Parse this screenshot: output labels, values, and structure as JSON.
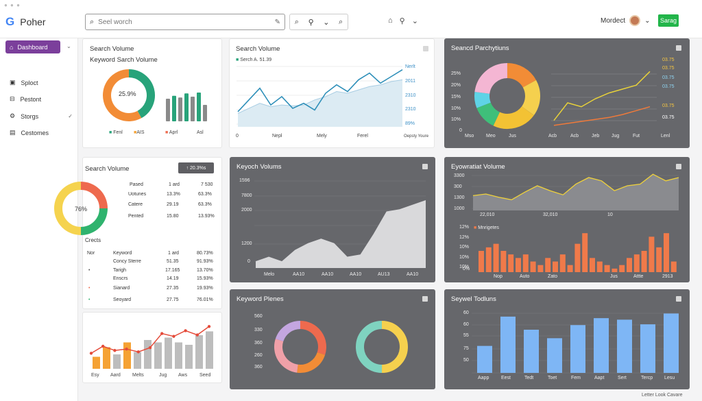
{
  "app": {
    "title": "Poher",
    "logo_letter": "G"
  },
  "search": {
    "placeholder": "Seel worch"
  },
  "user": {
    "name": "Mordect",
    "cta": "Sarag"
  },
  "sidebar": {
    "active": "Dashboard",
    "items": [
      {
        "label": "Sploct",
        "icon": "clipboard-icon"
      },
      {
        "label": "Pestont",
        "icon": "lock-icon"
      },
      {
        "label": "Storgs",
        "icon": "gear-icon"
      },
      {
        "label": "Cestomes",
        "icon": "document-icon"
      }
    ]
  },
  "card1": {
    "title": "Search Volume",
    "subtitle": "Keyword Sarch Volume",
    "donut_label": "25.9%",
    "legend": [
      "Fenl",
      "AIS",
      "Aprl",
      "Asl"
    ],
    "donut": [
      {
        "value": 0.42,
        "color": "#28a37a"
      },
      {
        "value": 0.58,
        "color": "#f28c36"
      }
    ],
    "bars": [
      {
        "v": 0.55,
        "color": "#8a8a8a"
      },
      {
        "v": 0.62,
        "color": "#28a37a"
      },
      {
        "v": 0.58,
        "color": "#8a8a8a"
      },
      {
        "v": 0.68,
        "color": "#28a37a"
      },
      {
        "v": 0.6,
        "color": "#8a8a8a"
      },
      {
        "v": 0.7,
        "color": "#28a37a"
      },
      {
        "v": 0.4,
        "color": "#8a8a8a"
      }
    ]
  },
  "card2": {
    "title": "Search Volume",
    "legend": "Serch A. 51.39",
    "x_labels": [
      "0",
      "Nepl",
      "Mely",
      "Ferel"
    ],
    "y_labels": [
      "Nerlt",
      "2011",
      "2310",
      "2310",
      "89%"
    ],
    "corner": "Oepsty Youre",
    "chart_data": {
      "type": "line",
      "x": [
        0,
        1,
        2,
        3,
        4,
        5,
        6,
        7,
        8,
        9,
        10,
        11,
        12,
        13,
        14,
        15
      ],
      "series": [
        {
          "values": [
            1.8,
            3.2,
            4.6,
            2.6,
            3.6,
            2.2,
            2.8,
            2.0,
            4.0,
            5.0,
            4.2,
            5.6,
            6.4,
            5.2,
            6.0,
            6.8
          ]
        },
        {
          "values": [
            1.6,
            2.2,
            2.8,
            2.4,
            2.6,
            2.5,
            2.6,
            3.2,
            3.6,
            4.2,
            4.0,
            4.4,
            4.8,
            5.0,
            5.4,
            5.6
          ]
        }
      ],
      "ylim": [
        0,
        8
      ]
    }
  },
  "card3": {
    "title": "Seancd Parchytiuns",
    "pie": [
      {
        "value": 0.17,
        "color": "#f28c36"
      },
      {
        "value": 0.18,
        "color": "#f5d04e"
      },
      {
        "value": 0.22,
        "color": "#f3c234"
      },
      {
        "value": 0.12,
        "color": "#3fbf7a"
      },
      {
        "value": 0.08,
        "color": "#5fd3e6"
      },
      {
        "value": 0.23,
        "color": "#f4b6d3"
      }
    ],
    "y_labels": [
      "25%",
      "20%",
      "15%",
      "10%",
      "10%",
      "0"
    ],
    "x_labels": [
      "Mso",
      "Meo",
      "Jus",
      "Acb",
      "Acb",
      "Jeb",
      "Jug",
      "Fut"
    ],
    "right": [
      "03.75",
      "03.75",
      "03.75",
      "03.75",
      "03.75",
      "03.75"
    ],
    "last": "Lenl",
    "chart_data": {
      "type": "line",
      "series": [
        {
          "values": [
            1,
            2.8,
            2.4,
            3.2,
            3.8,
            4.2,
            4.6,
            6.0
          ],
          "color": "#e8d23a"
        },
        {
          "values": [
            0.5,
            0.7,
            0.9,
            1.1,
            1.3,
            1.6,
            2.0,
            2.4
          ],
          "color": "#f07a3a"
        }
      ],
      "ylim": [
        0,
        7
      ]
    }
  },
  "card4": {
    "title": "Search Volume",
    "button": "↑ 20.3%s",
    "headers": [
      "Pased",
      "1 ard",
      "7 530"
    ],
    "rows": [
      [
        "Uotunes",
        "13.3%",
        "63.3%"
      ],
      [
        "Catere",
        "29.19",
        "63.3%"
      ],
      [
        "Pented",
        "15.80",
        "13.93%"
      ]
    ],
    "donut_label": "76%",
    "donut": [
      {
        "value": 0.25,
        "color": "#ee6a4e"
      },
      {
        "value": 0.25,
        "color": "#2fb36e"
      },
      {
        "value": 0.5,
        "color": "#f5d34e"
      }
    ],
    "section": "Crects",
    "col": "Nor",
    "rows2": [
      [
        "Keyword",
        "1 ard",
        "80.73%"
      ],
      [
        "Concy Sterre",
        "51.35",
        "91.93%"
      ],
      [
        "Tarigh",
        "17.165",
        "13.70%"
      ],
      [
        "Enscrs",
        "14.19",
        "15.93%"
      ],
      [
        "Sianard",
        "27.35",
        "19.93%"
      ],
      [
        "Seoyard",
        "27.75",
        "76.01%"
      ]
    ],
    "bullets": [
      "",
      "",
      "",
      "",
      "#ee6a4e",
      "#2fb36e"
    ]
  },
  "card5": {
    "x_labels": [
      "Esy",
      "Aard",
      "Melts",
      "Jug",
      "Aws",
      "Seed"
    ],
    "bars": [
      {
        "v": 0.25,
        "color": "#f5a234"
      },
      {
        "v": 0.45,
        "color": "#f5a234"
      },
      {
        "v": 0.3,
        "color": "#bdbdbd"
      },
      {
        "v": 0.55,
        "color": "#f5a234"
      },
      {
        "v": 0.35,
        "color": "#bdbdbd"
      },
      {
        "v": 0.6,
        "color": "#bdbdbd"
      },
      {
        "v": 0.55,
        "color": "#bdbdbd"
      },
      {
        "v": 0.65,
        "color": "#bdbdbd"
      },
      {
        "v": 0.55,
        "color": "#bdbdbd"
      },
      {
        "v": 0.5,
        "color": "#bdbdbd"
      },
      {
        "v": 0.7,
        "color": "#bdbdbd"
      },
      {
        "v": 0.78,
        "color": "#bdbdbd"
      }
    ],
    "chart_data": {
      "type": "line",
      "series": [
        {
          "values": [
            2.2,
            3.2,
            2.6,
            2.8,
            2.4,
            3.0,
            5.0,
            4.6,
            5.4,
            4.8,
            6.0
          ]
        }
      ],
      "ylim": [
        0,
        7
      ]
    }
  },
  "card6": {
    "title": "Keyoch Volums",
    "y_labels": [
      "1596",
      "7800",
      "2000",
      "1200",
      "0"
    ],
    "x_labels": [
      "Melo",
      "AA10",
      "AA10",
      "AA10",
      "AU13",
      "AA10"
    ],
    "chart_data": {
      "type": "area",
      "series": [
        {
          "values": [
            0.3,
            0.5,
            0.3,
            0.8,
            1.1,
            1.3,
            1.1,
            0.5,
            0.6,
            1.5,
            2.5,
            2.6,
            2.8,
            3.0
          ]
        }
      ],
      "ylim": [
        0,
        4
      ]
    }
  },
  "card7": {
    "title": "Eyowratiat Volume",
    "y_labels": [
      "3300",
      "300",
      "1300",
      "1000"
    ],
    "x_labels": [
      "22,010",
      "32,010",
      "10"
    ],
    "chart_data": {
      "type": "area",
      "series": [
        {
          "values": [
            1.8,
            2.0,
            1.6,
            1.3,
            2.2,
            3.0,
            2.4,
            1.9,
            3.2,
            4.0,
            3.6,
            2.4,
            3.0,
            3.2,
            4.4,
            3.6,
            4.0
          ]
        }
      ],
      "ylim": [
        0,
        5
      ]
    }
  },
  "card8": {
    "legend": "Mnrigetes",
    "y_labels": [
      "12%",
      "12%",
      "10%",
      "10%",
      "10%",
      "0%"
    ],
    "x_labels": [
      "Nop",
      "Auto",
      "Zato",
      "Jus",
      "Attte",
      "2913"
    ],
    "chart_data": {
      "type": "bar",
      "values": [
        6,
        7,
        8,
        6,
        5,
        4,
        5,
        3,
        2,
        4,
        3,
        5,
        2,
        8,
        11,
        4,
        3,
        2,
        1,
        2,
        4,
        5,
        6,
        10,
        7,
        11,
        3
      ]
    }
  },
  "card9": {
    "title": "Keyword Plenes",
    "y_labels": [
      "560",
      "330",
      "360",
      "260",
      "360"
    ],
    "ring1": [
      {
        "value": 0.3,
        "color": "#ee6a4e"
      },
      {
        "value": 0.22,
        "color": "#f28c36"
      },
      {
        "value": 0.28,
        "color": "#f0a0a8"
      },
      {
        "value": 0.2,
        "color": "#c4a6e0"
      }
    ],
    "ring2": [
      {
        "value": 0.5,
        "color": "#f5d04e"
      },
      {
        "value": 0.5,
        "color": "#7fd3c0"
      }
    ]
  },
  "card10": {
    "title": "Seywel Todluns",
    "y_labels": [
      "60",
      "60",
      "55",
      "75",
      "50"
    ],
    "x_labels": [
      "Aapp",
      "Eest",
      "Tedt",
      "Toet",
      "Fem",
      "Aapt",
      "Sert",
      "Tercp",
      "Lesu"
    ],
    "chart_data": {
      "type": "bar",
      "categories": [
        "Aapp",
        "Eest",
        "Tedt",
        "Toet",
        "Fem",
        "Aapt",
        "Sert",
        "Tercp",
        "Lesu"
      ],
      "values": [
        35,
        73,
        56,
        45,
        62,
        71,
        69,
        63,
        77
      ]
    }
  },
  "footer": "Letter Look Cavare"
}
